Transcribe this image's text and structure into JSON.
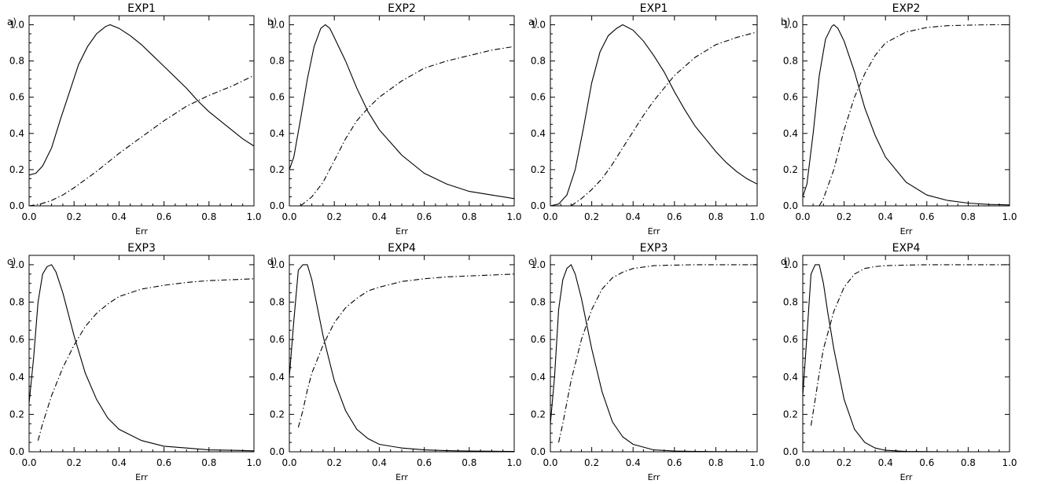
{
  "chart_data": [
    {
      "type": "line",
      "panel_label": "a)",
      "title": "EXP1",
      "xlabel": "Err",
      "ylabel": "",
      "xlim": [
        0,
        1
      ],
      "ylim": [
        0,
        1.05
      ],
      "grid": false,
      "x_ticks": [
        "0.0",
        "0.2",
        "0.4",
        "0.6",
        "0.8",
        "1.0"
      ],
      "y_ticks": [
        "0.0",
        "0.2",
        "0.4",
        "0.6",
        "0.8",
        "1.0"
      ],
      "series": [
        {
          "style": "solid",
          "x": [
            0,
            0.03,
            0.06,
            0.1,
            0.14,
            0.18,
            0.22,
            0.26,
            0.3,
            0.34,
            0.36,
            0.4,
            0.45,
            0.5,
            0.55,
            0.6,
            0.65,
            0.7,
            0.75,
            0.8,
            0.85,
            0.9,
            0.95,
            1.0
          ],
          "y": [
            0.17,
            0.18,
            0.22,
            0.32,
            0.48,
            0.63,
            0.78,
            0.88,
            0.95,
            0.99,
            1.0,
            0.98,
            0.94,
            0.89,
            0.83,
            0.77,
            0.71,
            0.65,
            0.58,
            0.52,
            0.47,
            0.42,
            0.37,
            0.33
          ]
        },
        {
          "style": "dash-dot",
          "x": [
            0,
            0.05,
            0.1,
            0.15,
            0.2,
            0.3,
            0.4,
            0.5,
            0.6,
            0.7,
            0.8,
            0.9,
            1.0
          ],
          "y": [
            0,
            0.01,
            0.03,
            0.06,
            0.1,
            0.19,
            0.29,
            0.38,
            0.47,
            0.55,
            0.61,
            0.66,
            0.72
          ]
        }
      ]
    },
    {
      "type": "line",
      "panel_label": "b)",
      "title": "EXP2",
      "xlabel": "Err",
      "ylabel": "",
      "xlim": [
        0,
        1
      ],
      "ylim": [
        0,
        1.05
      ],
      "grid": false,
      "x_ticks": [
        "0.0",
        "0.2",
        "0.4",
        "0.6",
        "0.8",
        "1.0"
      ],
      "y_ticks": [
        "0.0",
        "0.2",
        "0.4",
        "0.6",
        "0.8",
        "1.0"
      ],
      "series": [
        {
          "style": "solid",
          "x": [
            0,
            0.02,
            0.05,
            0.08,
            0.11,
            0.14,
            0.16,
            0.18,
            0.2,
            0.25,
            0.3,
            0.35,
            0.4,
            0.5,
            0.6,
            0.7,
            0.8,
            0.9,
            1.0
          ],
          "y": [
            0.2,
            0.27,
            0.48,
            0.7,
            0.88,
            0.98,
            1.0,
            0.98,
            0.93,
            0.8,
            0.65,
            0.52,
            0.42,
            0.28,
            0.18,
            0.12,
            0.08,
            0.06,
            0.04
          ]
        },
        {
          "style": "dash-dot",
          "x": [
            0.05,
            0.1,
            0.15,
            0.2,
            0.25,
            0.3,
            0.35,
            0.4,
            0.5,
            0.6,
            0.7,
            0.8,
            0.9,
            1.0
          ],
          "y": [
            0,
            0.05,
            0.13,
            0.25,
            0.37,
            0.47,
            0.54,
            0.6,
            0.69,
            0.76,
            0.8,
            0.83,
            0.86,
            0.88
          ]
        }
      ]
    },
    {
      "type": "line",
      "panel_label": "a)",
      "title": "EXP1",
      "xlabel": "Err",
      "ylabel": "",
      "xlim": [
        0,
        1
      ],
      "ylim": [
        0,
        1.05
      ],
      "grid": false,
      "x_ticks": [
        "0.0",
        "0.2",
        "0.4",
        "0.6",
        "0.8",
        "1.0"
      ],
      "y_ticks": [
        "0.0",
        "0.2",
        "0.4",
        "0.6",
        "0.8",
        "1.0"
      ],
      "series": [
        {
          "style": "solid",
          "x": [
            0,
            0.04,
            0.08,
            0.12,
            0.16,
            0.2,
            0.24,
            0.28,
            0.32,
            0.35,
            0.4,
            0.45,
            0.5,
            0.55,
            0.6,
            0.65,
            0.7,
            0.75,
            0.8,
            0.85,
            0.9,
            0.95,
            1.0
          ],
          "y": [
            0,
            0.01,
            0.06,
            0.2,
            0.43,
            0.68,
            0.85,
            0.94,
            0.98,
            1.0,
            0.97,
            0.91,
            0.83,
            0.74,
            0.63,
            0.53,
            0.44,
            0.37,
            0.3,
            0.24,
            0.19,
            0.15,
            0.12
          ]
        },
        {
          "style": "dash-dot",
          "x": [
            0.1,
            0.15,
            0.2,
            0.25,
            0.3,
            0.35,
            0.4,
            0.45,
            0.5,
            0.55,
            0.6,
            0.7,
            0.8,
            0.9,
            1.0
          ],
          "y": [
            0,
            0.04,
            0.09,
            0.15,
            0.23,
            0.32,
            0.41,
            0.5,
            0.58,
            0.65,
            0.72,
            0.82,
            0.89,
            0.93,
            0.96
          ]
        }
      ]
    },
    {
      "type": "line",
      "panel_label": "b)",
      "title": "EXP2",
      "xlabel": "Err",
      "ylabel": "",
      "xlim": [
        0,
        1
      ],
      "ylim": [
        0,
        1.05
      ],
      "grid": false,
      "x_ticks": [
        "0.0",
        "0.2",
        "0.4",
        "0.6",
        "0.8",
        "1.0"
      ],
      "y_ticks": [
        "0.0",
        "0.2",
        "0.4",
        "0.6",
        "0.8",
        "1.0"
      ],
      "series": [
        {
          "style": "solid",
          "x": [
            0,
            0.02,
            0.05,
            0.08,
            0.11,
            0.14,
            0.15,
            0.17,
            0.2,
            0.25,
            0.3,
            0.35,
            0.4,
            0.5,
            0.6,
            0.7,
            0.8,
            0.9,
            1.0
          ],
          "y": [
            0.05,
            0.12,
            0.4,
            0.72,
            0.92,
            0.99,
            1.0,
            0.98,
            0.91,
            0.74,
            0.54,
            0.39,
            0.27,
            0.13,
            0.06,
            0.03,
            0.015,
            0.008,
            0.005
          ]
        },
        {
          "style": "dash-dot",
          "x": [
            0.08,
            0.1,
            0.15,
            0.2,
            0.25,
            0.3,
            0.35,
            0.4,
            0.5,
            0.6,
            0.7,
            0.8,
            0.9,
            1.0
          ],
          "y": [
            0,
            0.04,
            0.2,
            0.42,
            0.6,
            0.73,
            0.83,
            0.9,
            0.96,
            0.985,
            0.995,
            0.998,
            1.0,
            1.0
          ]
        }
      ]
    },
    {
      "type": "line",
      "panel_label": "c)",
      "title": "EXP3",
      "xlabel": "Err",
      "ylabel": "",
      "xlim": [
        0,
        1
      ],
      "ylim": [
        0,
        1.05
      ],
      "grid": false,
      "x_ticks": [
        "0.0",
        "0.2",
        "0.4",
        "0.6",
        "0.8",
        "1.0"
      ],
      "y_ticks": [
        "0.0",
        "0.2",
        "0.4",
        "0.6",
        "0.8",
        "1.0"
      ],
      "series": [
        {
          "style": "solid",
          "x": [
            0,
            0.02,
            0.04,
            0.06,
            0.08,
            0.1,
            0.12,
            0.15,
            0.2,
            0.25,
            0.3,
            0.35,
            0.4,
            0.5,
            0.6,
            0.7,
            0.8,
            0.9,
            1.0
          ],
          "y": [
            0.26,
            0.5,
            0.8,
            0.95,
            0.99,
            1.0,
            0.96,
            0.85,
            0.62,
            0.42,
            0.28,
            0.18,
            0.12,
            0.06,
            0.03,
            0.02,
            0.01,
            0.008,
            0.005
          ]
        },
        {
          "style": "dash-dot",
          "x": [
            0.04,
            0.06,
            0.1,
            0.15,
            0.2,
            0.25,
            0.3,
            0.35,
            0.4,
            0.5,
            0.6,
            0.7,
            0.8,
            0.9,
            1.0
          ],
          "y": [
            0.06,
            0.15,
            0.3,
            0.45,
            0.57,
            0.67,
            0.74,
            0.79,
            0.83,
            0.87,
            0.89,
            0.905,
            0.915,
            0.92,
            0.925
          ]
        }
      ]
    },
    {
      "type": "line",
      "panel_label": "d)",
      "title": "EXP4",
      "xlabel": "Err",
      "ylabel": "",
      "xlim": [
        0,
        1
      ],
      "ylim": [
        0,
        1.05
      ],
      "grid": false,
      "x_ticks": [
        "0.0",
        "0.2",
        "0.4",
        "0.6",
        "0.8",
        "1.0"
      ],
      "y_ticks": [
        "0.0",
        "0.2",
        "0.4",
        "0.6",
        "0.8",
        "1.0"
      ],
      "series": [
        {
          "style": "solid",
          "x": [
            0,
            0.02,
            0.04,
            0.06,
            0.08,
            0.1,
            0.12,
            0.15,
            0.2,
            0.25,
            0.3,
            0.35,
            0.4,
            0.5,
            0.6,
            0.7,
            0.8,
            0.9,
            1.0
          ],
          "y": [
            0.4,
            0.7,
            0.97,
            1.0,
            1.0,
            0.92,
            0.8,
            0.62,
            0.38,
            0.22,
            0.12,
            0.07,
            0.04,
            0.02,
            0.01,
            0.006,
            0.004,
            0.003,
            0.002
          ]
        },
        {
          "style": "dash-dot",
          "x": [
            0.04,
            0.06,
            0.08,
            0.1,
            0.15,
            0.2,
            0.25,
            0.3,
            0.35,
            0.4,
            0.5,
            0.6,
            0.7,
            0.8,
            0.9,
            1.0
          ],
          "y": [
            0.13,
            0.22,
            0.33,
            0.42,
            0.57,
            0.69,
            0.77,
            0.82,
            0.86,
            0.88,
            0.91,
            0.925,
            0.935,
            0.94,
            0.945,
            0.95
          ]
        }
      ]
    },
    {
      "type": "line",
      "panel_label": "c)",
      "title": "EXP3",
      "xlabel": "Err",
      "ylabel": "",
      "xlim": [
        0,
        1
      ],
      "ylim": [
        0,
        1.05
      ],
      "grid": false,
      "x_ticks": [
        "0.0",
        "0.2",
        "0.4",
        "0.6",
        "0.8",
        "1.0"
      ],
      "y_ticks": [
        "0.0",
        "0.2",
        "0.4",
        "0.6",
        "0.8",
        "1.0"
      ],
      "series": [
        {
          "style": "solid",
          "x": [
            0,
            0.02,
            0.04,
            0.06,
            0.08,
            0.1,
            0.12,
            0.15,
            0.2,
            0.25,
            0.3,
            0.35,
            0.4,
            0.5,
            0.6,
            0.7,
            0.8,
            0.9,
            1.0
          ],
          "y": [
            0.15,
            0.4,
            0.76,
            0.92,
            0.98,
            1.0,
            0.95,
            0.82,
            0.55,
            0.32,
            0.16,
            0.08,
            0.04,
            0.01,
            0.004,
            0.002,
            0.001,
            0.001,
            0
          ]
        },
        {
          "style": "dash-dot",
          "x": [
            0.04,
            0.06,
            0.1,
            0.15,
            0.2,
            0.25,
            0.3,
            0.35,
            0.4,
            0.5,
            0.6,
            0.7,
            0.8,
            0.9,
            1.0
          ],
          "y": [
            0.05,
            0.15,
            0.38,
            0.6,
            0.76,
            0.87,
            0.93,
            0.96,
            0.98,
            0.995,
            0.998,
            1.0,
            1.0,
            1.0,
            1.0
          ]
        }
      ]
    },
    {
      "type": "line",
      "panel_label": "d)",
      "title": "EXP4",
      "xlabel": "Err",
      "ylabel": "",
      "xlim": [
        0,
        1
      ],
      "ylim": [
        0,
        1.05
      ],
      "grid": false,
      "x_ticks": [
        "0.0",
        "0.2",
        "0.4",
        "0.6",
        "0.8",
        "1.0"
      ],
      "y_ticks": [
        "0.0",
        "0.2",
        "0.4",
        "0.6",
        "0.8",
        "1.0"
      ],
      "series": [
        {
          "style": "solid",
          "x": [
            0,
            0.02,
            0.04,
            0.06,
            0.08,
            0.1,
            0.12,
            0.15,
            0.2,
            0.25,
            0.3,
            0.35,
            0.4,
            0.5,
            0.6,
            0.7,
            0.8,
            0.9,
            1.0
          ],
          "y": [
            0.3,
            0.62,
            0.95,
            1.0,
            1.0,
            0.9,
            0.75,
            0.55,
            0.28,
            0.12,
            0.05,
            0.02,
            0.008,
            0.002,
            0.001,
            0,
            0,
            0,
            0
          ]
        },
        {
          "style": "dash-dot",
          "x": [
            0.04,
            0.06,
            0.08,
            0.1,
            0.15,
            0.2,
            0.25,
            0.3,
            0.35,
            0.4,
            0.5,
            0.6,
            0.7,
            0.8,
            0.9,
            1.0
          ],
          "y": [
            0.14,
            0.28,
            0.42,
            0.55,
            0.75,
            0.88,
            0.95,
            0.98,
            0.99,
            0.995,
            0.998,
            1.0,
            1.0,
            1.0,
            1.0,
            1.0
          ]
        }
      ]
    }
  ]
}
